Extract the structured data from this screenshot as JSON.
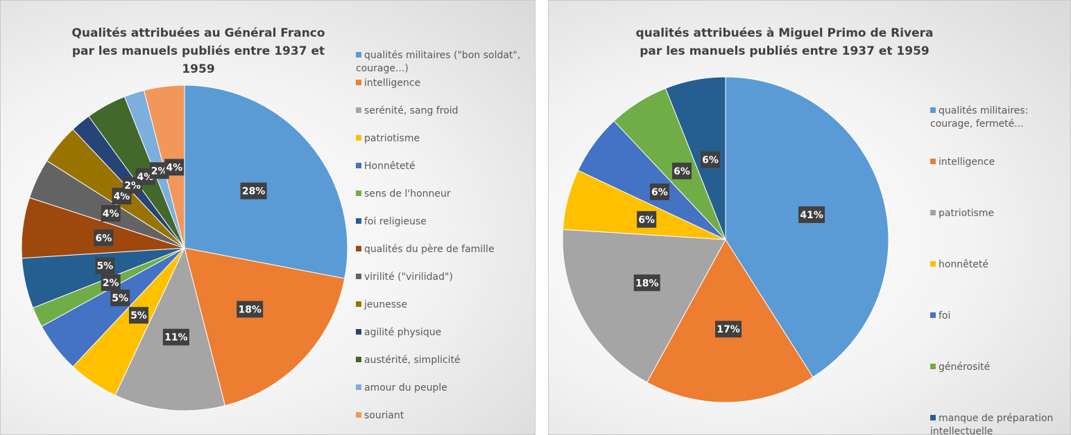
{
  "chart_data": [
    {
      "type": "pie",
      "title": "Qualités attribuées au Général Franco par les manuels publiés entre 1937 et 1959",
      "categories": [
        "qualités militaires (\"bon soldat\", courage...)",
        "intelligence",
        "serénité, sang froid",
        "patriotisme",
        "Honnêteté",
        "sens de l'honneur",
        "foi religieuse",
        "qualités du père de famille",
        "virilité (\"virilidad\")",
        "jeunesse",
        "agilité physique",
        "austérité, simplicité",
        "amour du peuple",
        "souriant"
      ],
      "values": [
        28,
        18,
        11,
        5,
        5,
        2,
        5,
        6,
        4,
        4,
        2,
        4,
        2,
        4
      ],
      "value_labels": [
        "28%",
        "18%",
        "11%",
        "5%",
        "5%",
        "2%",
        "5%",
        "6%",
        "4%",
        "4%",
        "2%",
        "4%",
        "2%",
        "4%"
      ],
      "colors": [
        "#5b9bd5",
        "#ed7d31",
        "#a5a5a5",
        "#ffc000",
        "#4472c4",
        "#70ad47",
        "#255e91",
        "#9e480e",
        "#636363",
        "#997300",
        "#264478",
        "#43682b",
        "#7cafdd",
        "#f1975a"
      ],
      "legend": "right"
    },
    {
      "type": "pie",
      "title": "qualités attribuées à Miguel Primo de Rivera par les manuels publiés entre 1937 et 1959",
      "categories": [
        "qualités militaires: courage, fermeté...",
        "intelligence",
        "patriotisme",
        "honnêteté",
        "foi",
        "générosité",
        "manque de préparation intellectuelle"
      ],
      "values": [
        41,
        17,
        18,
        6,
        6,
        6,
        6
      ],
      "value_labels": [
        "41%",
        "17%",
        "18%",
        "6%",
        "6%",
        "6%",
        "6%"
      ],
      "colors": [
        "#5b9bd5",
        "#ed7d31",
        "#a5a5a5",
        "#ffc000",
        "#4472c4",
        "#70ad47",
        "#255e91"
      ],
      "legend": "right"
    }
  ]
}
